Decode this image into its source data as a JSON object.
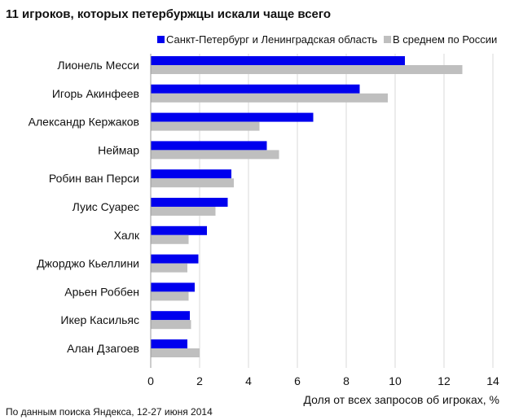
{
  "chart_data": {
    "type": "bar",
    "orientation": "horizontal",
    "title": "11 игроков, которых петербуржцы искали чаще всего",
    "categories": [
      "Лионель Месси",
      "Игорь Акинфеев",
      "Александр Кержаков",
      "Неймар",
      "Робин ван Перси",
      "Луис Суарес",
      "Халк",
      "Джорджо Кьеллини",
      "Арьен Роббен",
      "Икер Касильяс",
      "Алан Дзагоев"
    ],
    "series": [
      {
        "name": "Санкт-Петербург и Ленинградская область",
        "color": "#0000ee",
        "values": [
          10.4,
          8.55,
          6.65,
          4.75,
          3.3,
          3.15,
          2.3,
          1.95,
          1.8,
          1.6,
          1.5
        ]
      },
      {
        "name": "В среднем по России",
        "color": "#bfbfbf",
        "values": [
          12.75,
          9.7,
          4.45,
          5.25,
          3.4,
          2.65,
          1.55,
          1.5,
          1.55,
          1.65,
          2.0
        ]
      }
    ],
    "xlabel": "Доля от всех запросов об игроках, %",
    "xlim": [
      0,
      14
    ],
    "xticks": [
      0,
      2,
      4,
      6,
      8,
      10,
      12,
      14
    ],
    "grid": true,
    "legend_position": "top-right",
    "source": "По данным  поиска Яндекса,  12-27 июня  2014"
  }
}
